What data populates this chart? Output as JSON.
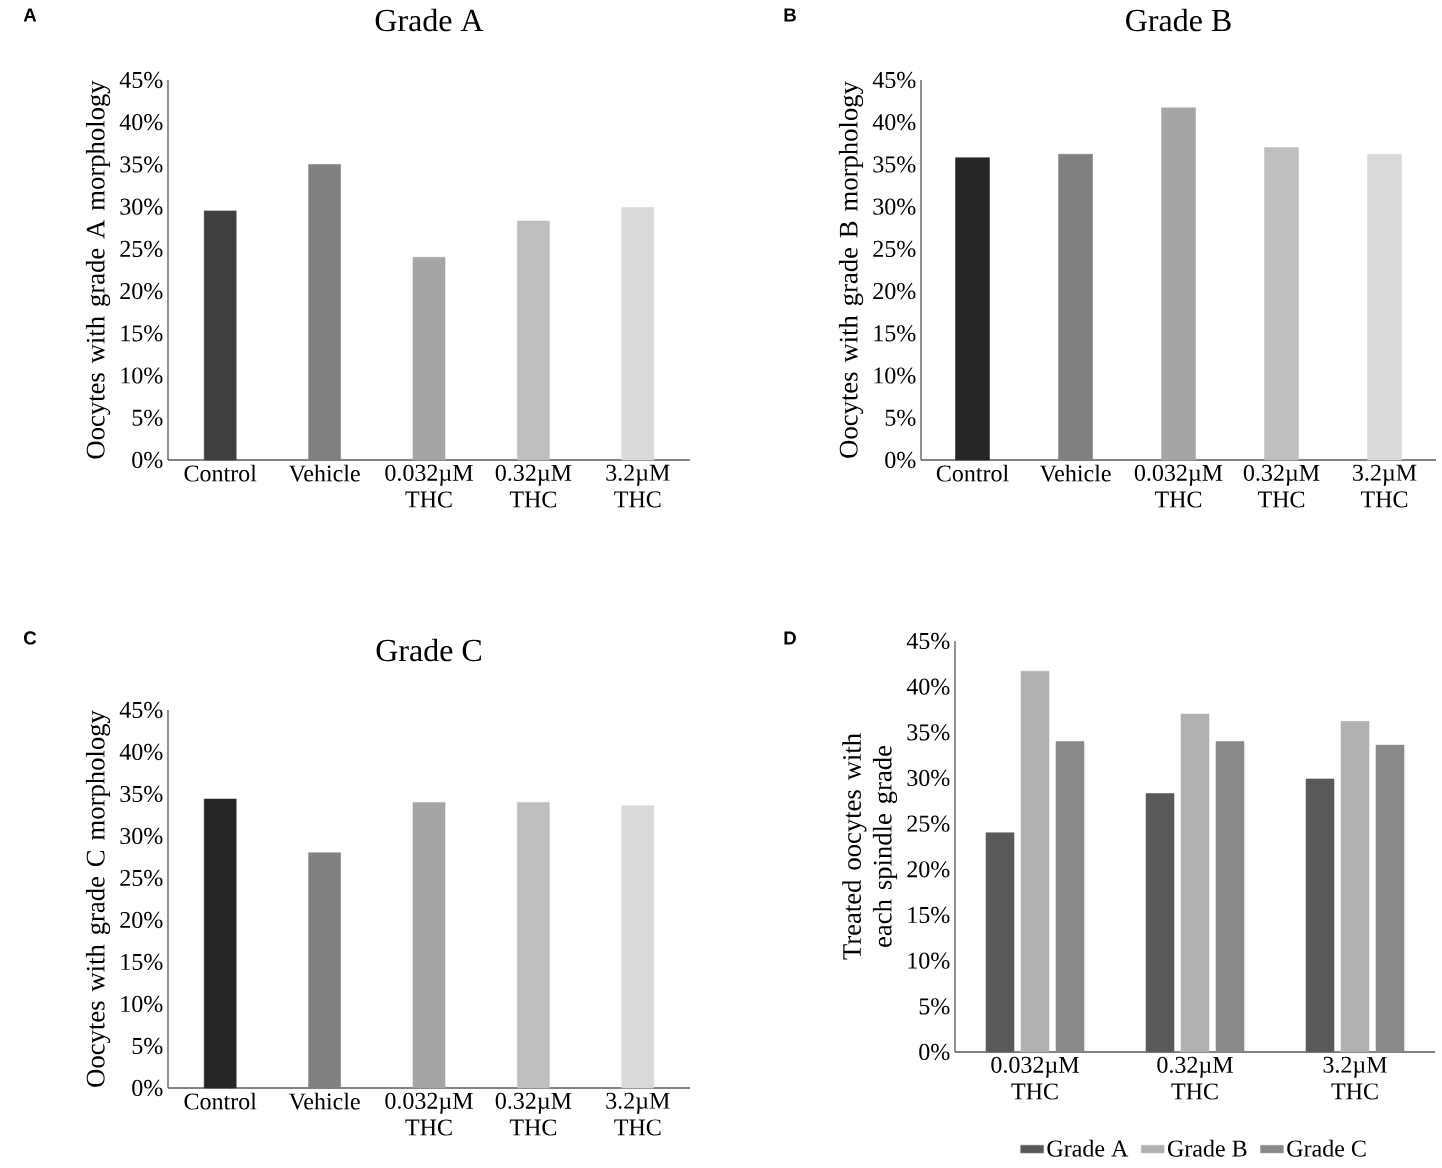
{
  "chart_data": [
    {
      "type": "bar",
      "title": "Grade A",
      "ylabel": "Oocytes with grade A morphology",
      "annotations": [
        "A"
      ],
      "categories": [
        "Control",
        "Vehicle",
        "0.032µM THC",
        "0.32µM THC",
        "3.2µM THC"
      ],
      "values": [
        29.5,
        35.0,
        24.0,
        28.3,
        29.9
      ],
      "colors": [
        "#404040",
        "#808080",
        "#a5a5a5",
        "#bfbfbf",
        "#d9d9d9"
      ],
      "ylim": [
        0,
        45
      ],
      "yticks": [
        {
          "value": 0,
          "label": "0%"
        },
        {
          "value": 5,
          "label": "5%"
        },
        {
          "value": 10,
          "label": "10%"
        },
        {
          "value": 15,
          "label": "15%"
        },
        {
          "value": 20,
          "label": "20%"
        },
        {
          "value": 25,
          "label": "25%"
        },
        {
          "value": 30,
          "label": "30%"
        },
        {
          "value": 35,
          "label": "35%"
        },
        {
          "value": 40,
          "label": "40%"
        },
        {
          "value": 45,
          "label": "45%"
        }
      ]
    },
    {
      "type": "bar",
      "title": "Grade B",
      "ylabel": "Oocytes with grade B morphology",
      "annotations": [
        "B"
      ],
      "categories": [
        "Control",
        "Vehicle",
        "0.032µM THC",
        "0.32µM THC",
        "3.2µM THC"
      ],
      "values": [
        35.8,
        36.2,
        41.7,
        37.0,
        36.2
      ],
      "colors": [
        "#262626",
        "#808080",
        "#a5a5a5",
        "#bfbfbf",
        "#d9d9d9"
      ],
      "ylim": [
        0,
        45
      ],
      "yticks": [
        {
          "value": 0,
          "label": "0%"
        },
        {
          "value": 5,
          "label": "5%"
        },
        {
          "value": 10,
          "label": "10%"
        },
        {
          "value": 15,
          "label": "15%"
        },
        {
          "value": 20,
          "label": "20%"
        },
        {
          "value": 25,
          "label": "25%"
        },
        {
          "value": 30,
          "label": "30%"
        },
        {
          "value": 35,
          "label": "35%"
        },
        {
          "value": 40,
          "label": "40%"
        },
        {
          "value": 45,
          "label": "45%"
        }
      ]
    },
    {
      "type": "bar",
      "title": "Grade C",
      "ylabel": "Oocytes with grade C morphology",
      "annotations": [
        "C"
      ],
      "categories": [
        "Control",
        "Vehicle",
        "0.032µM THC",
        "0.32µM THC",
        "3.2µM THC"
      ],
      "values": [
        34.4,
        28.0,
        34.0,
        34.0,
        33.6
      ],
      "colors": [
        "#262626",
        "#808080",
        "#a5a5a5",
        "#bfbfbf",
        "#d9d9d9"
      ],
      "ylim": [
        0,
        45
      ],
      "yticks": [
        {
          "value": 0,
          "label": "0%"
        },
        {
          "value": 5,
          "label": "5%"
        },
        {
          "value": 10,
          "label": "10%"
        },
        {
          "value": 15,
          "label": "15%"
        },
        {
          "value": 20,
          "label": "20%"
        },
        {
          "value": 25,
          "label": "25%"
        },
        {
          "value": 30,
          "label": "30%"
        },
        {
          "value": 35,
          "label": "35%"
        },
        {
          "value": 40,
          "label": "40%"
        },
        {
          "value": 45,
          "label": "45%"
        }
      ]
    },
    {
      "type": "bar",
      "ylabel": "Treated oocytes with each spindle grade",
      "annotations": [
        "D"
      ],
      "categories": [
        "0.032µM THC",
        "0.32µM THC",
        "3.2µM THC"
      ],
      "series": [
        {
          "name": "Grade A",
          "color": "#595959",
          "values": [
            24.0,
            28.3,
            29.9
          ]
        },
        {
          "name": "Grade B",
          "color": "#b0b0b0",
          "values": [
            41.7,
            37.0,
            36.2
          ]
        },
        {
          "name": "Grade C",
          "color": "#898989",
          "values": [
            34.0,
            34.0,
            33.6
          ]
        }
      ],
      "legend": "bottom",
      "ylim": [
        0,
        45
      ],
      "yticks": [
        {
          "value": 0,
          "label": "0%"
        },
        {
          "value": 5,
          "label": "5%"
        },
        {
          "value": 10,
          "label": "10%"
        },
        {
          "value": 15,
          "label": "15%"
        },
        {
          "value": 20,
          "label": "20%"
        },
        {
          "value": 25,
          "label": "25%"
        },
        {
          "value": 30,
          "label": "30%"
        },
        {
          "value": 35,
          "label": "35%"
        },
        {
          "value": 40,
          "label": "40%"
        },
        {
          "value": 45,
          "label": "45%"
        }
      ]
    }
  ]
}
